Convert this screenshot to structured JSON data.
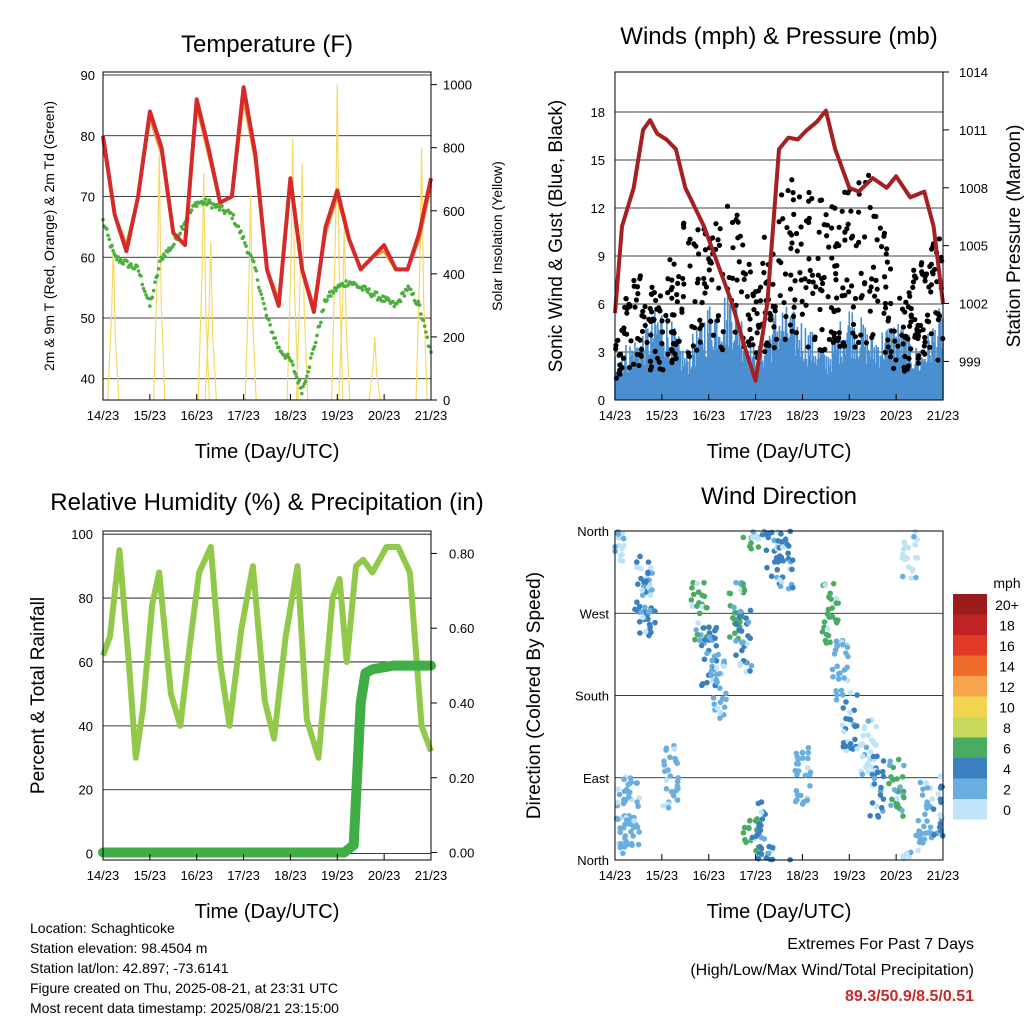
{
  "colors": {
    "temp_2m": "#d42a2a",
    "temp_9m": "#f29b3a",
    "dewpoint": "#4caf3c",
    "solar": "#f6d867",
    "wind": "#000000",
    "sonic": "#4a90d0",
    "pressure": "#a52020",
    "rh": "#93c94b",
    "precip": "#3fae45"
  },
  "time_ticks": [
    "14/23",
    "15/23",
    "16/23",
    "17/23",
    "18/23",
    "19/23",
    "20/23",
    "21/23"
  ],
  "xlabel": "Time (Day/UTC)",
  "chart_data": [
    {
      "type": "line",
      "title": "Temperature (F)",
      "xlabel": "Time (Day/UTC)",
      "ylabel": "2m & 9m T (Red, Orange) & 2m Td (Green)",
      "ylabel_right": "Solar Insolation (Yellow)",
      "ylim": [
        36.5,
        90.5
      ],
      "ylim_right": [
        0,
        1040
      ],
      "yticks": [
        40,
        50,
        60,
        70,
        80,
        90
      ],
      "yticks_right": [
        0,
        200,
        400,
        600,
        800,
        1000
      ],
      "x": [
        0,
        0.25,
        0.5,
        0.75,
        1,
        1.25,
        1.5,
        1.75,
        2,
        2.25,
        2.5,
        2.75,
        3,
        3.25,
        3.5,
        3.75,
        4,
        4.25,
        4.5,
        4.75,
        5,
        5.25,
        5.5,
        5.75,
        6,
        6.25,
        6.5,
        6.75,
        7
      ],
      "series": [
        {
          "key": "t2m",
          "values": [
            80,
            67,
            61,
            70,
            84,
            78,
            64,
            62,
            86,
            78,
            69,
            70,
            88,
            77,
            58,
            52,
            73,
            58,
            51,
            65,
            71,
            63,
            58,
            60,
            62,
            58,
            58,
            64,
            73
          ]
        },
        {
          "key": "t9m",
          "values": [
            79,
            67,
            62,
            70,
            83,
            77,
            64,
            62,
            85,
            77,
            69,
            70,
            86,
            76,
            58,
            53,
            72,
            58,
            52,
            64,
            70,
            63,
            58,
            60,
            61,
            58,
            58,
            63,
            72
          ]
        },
        {
          "key": "td",
          "values": [
            66,
            60,
            59,
            58,
            52,
            60,
            62,
            66,
            69,
            69,
            68,
            67,
            63,
            58,
            50,
            45,
            43,
            38,
            45,
            53,
            55,
            56,
            55,
            54,
            53,
            52,
            55,
            52,
            44
          ]
        },
        {
          "key": "solar",
          "axis": "right",
          "peaks": [
            {
              "x": 0.22,
              "v": 500
            },
            {
              "x": 1.2,
              "v": 780
            },
            {
              "x": 2.15,
              "v": 720
            },
            {
              "x": 2.3,
              "v": 500
            },
            {
              "x": 3.15,
              "v": 650
            },
            {
              "x": 4.05,
              "v": 830
            },
            {
              "x": 4.25,
              "v": 750
            },
            {
              "x": 5.0,
              "v": 1000
            },
            {
              "x": 5.15,
              "v": 560
            },
            {
              "x": 5.8,
              "v": 200
            },
            {
              "x": 6.8,
              "v": 800
            }
          ]
        }
      ]
    },
    {
      "type": "scatter",
      "title": "Winds (mph) & Pressure (mb)",
      "xlabel": "Time (Day/UTC)",
      "ylabel": "Sonic Wind & Gust (Blue, Black)",
      "ylabel_right": "Station Pressure (Maroon)",
      "ylim": [
        0,
        20.5
      ],
      "yticks": [
        0,
        3,
        6,
        9,
        12,
        15,
        18
      ],
      "ylim_right": [
        997,
        1014
      ],
      "yticks_right": [
        999,
        1002,
        1005,
        1008,
        1011,
        1014
      ],
      "pressure": {
        "x": [
          0,
          0.15,
          0.4,
          0.6,
          0.75,
          0.9,
          1.1,
          1.3,
          1.5,
          1.7,
          1.9,
          2.2,
          2.5,
          2.8,
          3.0,
          3.25,
          3.5,
          3.7,
          3.9,
          4.1,
          4.3,
          4.5,
          4.7,
          5.0,
          5.2,
          5.5,
          5.8,
          6.0,
          6.3,
          6.6,
          6.8,
          7.0
        ],
        "values": [
          1001.5,
          1006,
          1008,
          1011,
          1011.5,
          1010.8,
          1010.5,
          1010,
          1008,
          1007,
          1006,
          1004,
          1002,
          999.5,
          998,
          1002,
          1010,
          1010.6,
          1010.5,
          1011,
          1011.4,
          1012,
          1010,
          1008,
          1007.8,
          1008.5,
          1008,
          1008.6,
          1007.5,
          1007.8,
          1006,
          1002
        ]
      },
      "gust_envelope": {
        "x": [
          0,
          0.5,
          1,
          1.5,
          2,
          2.5,
          3,
          3.2,
          3.5,
          4,
          4.5,
          5,
          5.5,
          6,
          6.5,
          7
        ],
        "values": [
          5,
          8,
          7,
          11,
          10,
          13,
          7,
          11,
          14,
          13,
          12,
          13,
          14,
          6,
          9,
          10
        ]
      },
      "sonic_envelope": {
        "x": [
          0,
          0.5,
          1,
          1.5,
          2,
          2.5,
          3,
          3.5,
          4,
          4.5,
          5,
          5.5,
          6,
          6.5,
          7
        ],
        "values": [
          3,
          4,
          6,
          3,
          6,
          7,
          3,
          6,
          5,
          3,
          6,
          4,
          5,
          3,
          6
        ]
      }
    },
    {
      "type": "line",
      "title": "Relative Humidity (%) & Precipitation (in)",
      "xlabel": "Time (Day/UTC)",
      "ylabel": "Percent & Total Rainfall",
      "ylim": [
        -2,
        101
      ],
      "yticks": [
        0,
        20,
        40,
        60,
        80,
        100
      ],
      "ylim_right": [
        -0.02,
        0.86
      ],
      "yticks_right": [
        "0.00",
        "0.20",
        "0.40",
        "0.60",
        "0.80"
      ],
      "x": [
        0,
        0.15,
        0.35,
        0.55,
        0.7,
        0.85,
        1.05,
        1.2,
        1.45,
        1.65,
        1.85,
        2.05,
        2.3,
        2.5,
        2.7,
        2.95,
        3.2,
        3.45,
        3.65,
        3.9,
        4.15,
        4.35,
        4.6,
        4.9,
        5.05,
        5.2,
        5.4,
        5.55,
        5.75,
        6.05,
        6.3,
        6.55,
        6.8,
        7.0
      ],
      "series": [
        {
          "key": "rh",
          "values": [
            62,
            68,
            95,
            60,
            30,
            45,
            78,
            88,
            50,
            40,
            65,
            88,
            96,
            60,
            40,
            70,
            90,
            48,
            36,
            68,
            90,
            42,
            30,
            80,
            86,
            60,
            90,
            92,
            88,
            96,
            96,
            88,
            40,
            32
          ]
        },
        {
          "key": "precip",
          "axis": "right",
          "x": [
            0,
            5.15,
            5.35,
            5.5,
            5.6,
            5.75,
            6.2,
            7.0
          ],
          "values": [
            0,
            0,
            0.02,
            0.4,
            0.48,
            0.49,
            0.5,
            0.5
          ]
        }
      ]
    },
    {
      "type": "scatter",
      "title": "Wind Direction",
      "xlabel": "Time (Day/UTC)",
      "ylabel": "Direction (Colored By Speed)",
      "yticks": [
        "North",
        "East",
        "South",
        "West",
        "North"
      ],
      "legend_title": "mph",
      "legend_labels": [
        "20+",
        "18",
        "16",
        "14",
        "12",
        "10",
        "8",
        "6",
        "4",
        "2",
        "0"
      ],
      "legend_colors": [
        "#9c1b1b",
        "#bf2323",
        "#e03a26",
        "#f06a2a",
        "#f7a44a",
        "#f2d54e",
        "#c7d85a",
        "#4aab62",
        "#3a7fc0",
        "#6aaee0",
        "#bfe4f7"
      ],
      "clusters": [
        {
          "x": 0.0,
          "y": 355,
          "c": "#bfe4f7"
        },
        {
          "x": 0.05,
          "y": 10,
          "c": "#6aaee0"
        },
        {
          "x": 0.2,
          "y": 60,
          "c": "#6aaee0"
        },
        {
          "x": 0.35,
          "y": 50,
          "c": "#6aaee0"
        },
        {
          "x": 0.6,
          "y": 300,
          "c": "#3a7fc0"
        },
        {
          "x": 0.7,
          "y": 280,
          "c": "#3a7fc0"
        },
        {
          "x": 1.2,
          "y": 90,
          "c": "#6aaee0"
        },
        {
          "x": 1.8,
          "y": 270,
          "c": "#4aab62"
        },
        {
          "x": 2.0,
          "y": 220,
          "c": "#3a7fc0"
        },
        {
          "x": 2.2,
          "y": 190,
          "c": "#6aaee0"
        },
        {
          "x": 2.6,
          "y": 270,
          "c": "#4aab62"
        },
        {
          "x": 2.75,
          "y": 240,
          "c": "#3a7fc0"
        },
        {
          "x": 2.9,
          "y": 10,
          "c": "#4aab62"
        },
        {
          "x": 3.1,
          "y": 30,
          "c": "#3a7fc0"
        },
        {
          "x": 3.4,
          "y": 340,
          "c": "#3a7fc0"
        },
        {
          "x": 3.65,
          "y": 330,
          "c": "#3a7fc0"
        },
        {
          "x": 4.0,
          "y": 90,
          "c": "#6aaee0"
        },
        {
          "x": 4.6,
          "y": 270,
          "c": "#4aab62"
        },
        {
          "x": 4.8,
          "y": 210,
          "c": "#6aaee0"
        },
        {
          "x": 5.0,
          "y": 150,
          "c": "#3a7fc0"
        },
        {
          "x": 5.4,
          "y": 120,
          "c": "#bfe4f7"
        },
        {
          "x": 5.6,
          "y": 80,
          "c": "#3a7fc0"
        },
        {
          "x": 6.0,
          "y": 80,
          "c": "#4aab62"
        },
        {
          "x": 6.3,
          "y": 340,
          "c": "#bfe4f7"
        },
        {
          "x": 6.6,
          "y": 50,
          "c": "#6aaee0"
        },
        {
          "x": 6.9,
          "y": 60,
          "c": "#3a7fc0"
        }
      ]
    }
  ],
  "info": {
    "location": "Location: Schaghticoke",
    "elevation": "Station elevation: 98.4504 m",
    "latlon": "Station lat/lon: 42.897; -73.6141",
    "created": "Figure created on Thu, 2025-08-21, at 23:31 UTC",
    "recent": "Most recent data timestamp: 2025/08/21 23:15:00"
  },
  "extremes": {
    "title": "Extremes For Past 7 Days",
    "subtitle": "(High/Low/Max Wind/Total Precipitation)",
    "values": "89.3/50.9/8.5/0.51"
  }
}
